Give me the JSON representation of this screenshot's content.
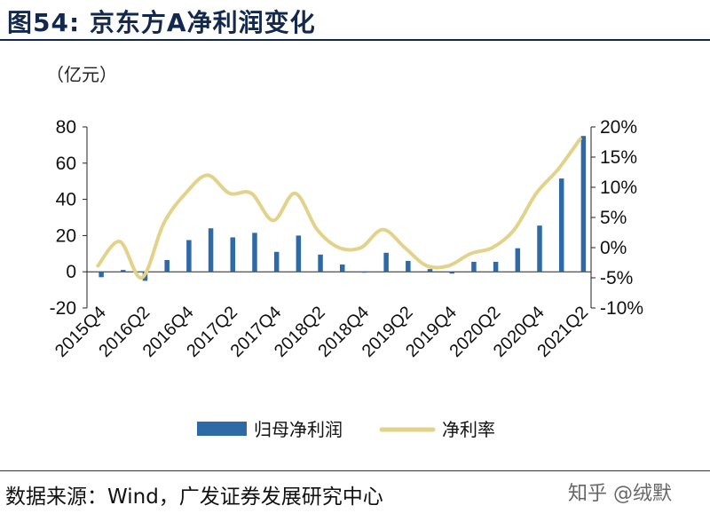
{
  "header": {
    "title": "图54:  京东方A净利润变化"
  },
  "unit_label": "（亿元）",
  "footer": {
    "source": "数据来源：Wind，广发证券发展研究中心",
    "watermark": "知乎 @绒默"
  },
  "colors": {
    "bar": "#2e6aa8",
    "line": "#e2d28a",
    "axis": "#222222"
  },
  "chart_data": {
    "type": "bar",
    "categories": [
      "2015Q4",
      "2016Q1",
      "2016Q2",
      "2016Q3",
      "2016Q4",
      "2017Q1",
      "2017Q2",
      "2017Q3",
      "2017Q4",
      "2018Q1",
      "2018Q2",
      "2018Q3",
      "2018Q4",
      "2019Q1",
      "2019Q2",
      "2019Q3",
      "2019Q4",
      "2020Q1",
      "2020Q2",
      "2020Q3",
      "2020Q4",
      "2021Q1",
      "2021Q2"
    ],
    "x_tick_labels": [
      "2015Q4",
      "2016Q2",
      "2016Q4",
      "2017Q2",
      "2017Q4",
      "2018Q2",
      "2018Q4",
      "2019Q2",
      "2019Q4",
      "2020Q2",
      "2020Q4",
      "2021Q2"
    ],
    "series": [
      {
        "name": "归母净利润",
        "type": "bar",
        "axis": "left",
        "values": [
          -3,
          1,
          -5,
          6.5,
          17.5,
          24,
          19,
          21.5,
          11,
          20,
          9.5,
          4,
          -0.5,
          10.5,
          6,
          1.5,
          -1,
          5.5,
          5.5,
          13,
          25.5,
          51.5,
          75
        ]
      },
      {
        "name": "净利率",
        "type": "line",
        "axis": "right",
        "values": [
          -3,
          1,
          -5,
          4,
          9,
          12,
          9,
          9,
          4.5,
          9,
          3,
          0,
          0,
          3,
          0,
          -3,
          -3,
          -1,
          0,
          3,
          9,
          13,
          18
        ]
      }
    ],
    "y_left": {
      "ticks": [
        "80",
        "60",
        "40",
        "20",
        "0",
        "-20"
      ],
      "ylim": [
        -20,
        80
      ]
    },
    "y_right": {
      "ticks": [
        "20%",
        "15%",
        "10%",
        "5%",
        "0%",
        "-5%",
        "-10%"
      ],
      "ylim": [
        -10,
        20
      ]
    },
    "legend": {
      "position": "bottom",
      "entries": [
        "归母净利润",
        "净利率"
      ]
    }
  }
}
